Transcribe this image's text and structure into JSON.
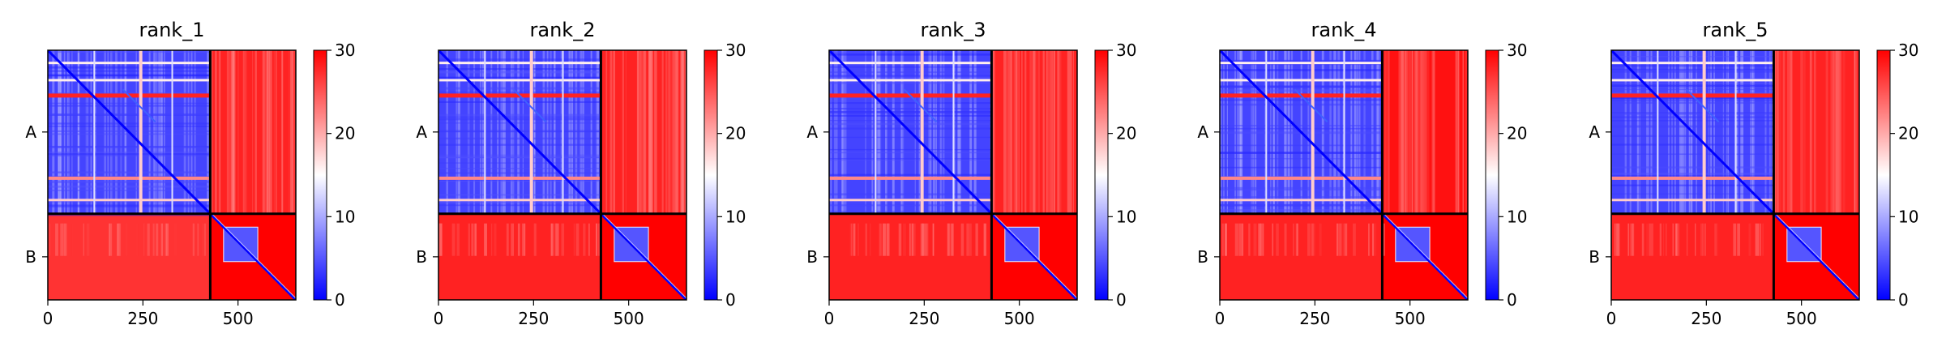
{
  "chart_data": [
    {
      "type": "heatmap",
      "title": "rank_1",
      "xlim": [
        0,
        652
      ],
      "x_ticks": [
        0,
        250,
        500
      ],
      "y_tick_labels": [
        "A",
        "B"
      ],
      "chain_boundary": 427,
      "pae_cross_mean": [
        28,
        27
      ],
      "colorbar": {
        "min": 0,
        "max": 30,
        "ticks": [
          0,
          10,
          20,
          30
        ],
        "colors": [
          "#0000ff",
          "#ffffff",
          "#ff0000"
        ]
      }
    },
    {
      "type": "heatmap",
      "title": "rank_2",
      "xlim": [
        0,
        652
      ],
      "x_ticks": [
        0,
        250,
        500
      ],
      "y_tick_labels": [
        "A",
        "B"
      ],
      "chain_boundary": 427,
      "pae_cross_mean": [
        28,
        28
      ],
      "colorbar": {
        "min": 0,
        "max": 30,
        "ticks": [
          0,
          10,
          20,
          30
        ],
        "colors": [
          "#0000ff",
          "#ffffff",
          "#ff0000"
        ]
      }
    },
    {
      "type": "heatmap",
      "title": "rank_3",
      "xlim": [
        0,
        652
      ],
      "x_ticks": [
        0,
        250,
        500
      ],
      "y_tick_labels": [
        "A",
        "B"
      ],
      "chain_boundary": 427,
      "pae_cross_mean": [
        28,
        28
      ],
      "colorbar": {
        "min": 0,
        "max": 30,
        "ticks": [
          0,
          10,
          20,
          30
        ],
        "colors": [
          "#0000ff",
          "#ffffff",
          "#ff0000"
        ]
      }
    },
    {
      "type": "heatmap",
      "title": "rank_4",
      "xlim": [
        0,
        652
      ],
      "x_ticks": [
        0,
        250,
        500
      ],
      "y_tick_labels": [
        "A",
        "B"
      ],
      "chain_boundary": 427,
      "pae_cross_mean": [
        29,
        28
      ],
      "colorbar": {
        "min": 0,
        "max": 30,
        "ticks": [
          0,
          10,
          20,
          30
        ],
        "colors": [
          "#0000ff",
          "#ffffff",
          "#ff0000"
        ]
      }
    },
    {
      "type": "heatmap",
      "title": "rank_5",
      "xlim": [
        0,
        652
      ],
      "x_ticks": [
        0,
        250,
        500
      ],
      "y_tick_labels": [
        "A",
        "B"
      ],
      "chain_boundary": 427,
      "pae_cross_mean": [
        28,
        28
      ],
      "colorbar": {
        "min": 0,
        "max": 30,
        "ticks": [
          0,
          10,
          20,
          30
        ],
        "colors": [
          "#0000ff",
          "#ffffff",
          "#ff0000"
        ]
      }
    }
  ]
}
